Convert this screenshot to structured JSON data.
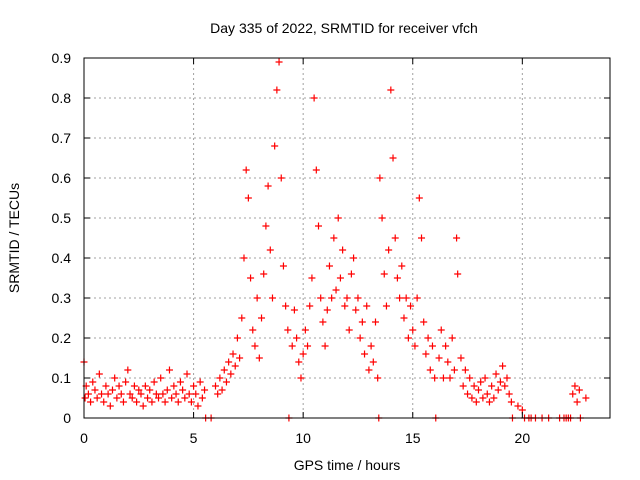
{
  "chart_data": {
    "type": "scatter",
    "title": "Day 335 of 2022, SRMTID for receiver vfch",
    "xlabel": "GPS time / hours",
    "ylabel": "SRMTID / TECUs",
    "xlim": [
      0,
      24
    ],
    "ylim": [
      0,
      0.9
    ],
    "x_ticks": [
      0,
      5,
      10,
      15,
      20
    ],
    "x_tick_labels": [
      "0",
      "5",
      "10",
      "15",
      "20"
    ],
    "y_ticks": [
      0,
      0.1,
      0.2,
      0.3,
      0.4,
      0.5,
      0.6,
      0.7,
      0.8,
      0.9
    ],
    "y_tick_labels": [
      "0",
      "0.1",
      "0.2",
      "0.3",
      "0.4",
      "0.5",
      "0.6",
      "0.7",
      "0.8",
      "0.9"
    ],
    "grid": true,
    "marker": "plus",
    "color": "#ff0000",
    "series": [
      {
        "name": "SRMTID",
        "points": [
          [
            0.0,
            0.14
          ],
          [
            0.05,
            0.05
          ],
          [
            0.1,
            0.08
          ],
          [
            0.2,
            0.06
          ],
          [
            0.3,
            0.04
          ],
          [
            0.4,
            0.09
          ],
          [
            0.5,
            0.07
          ],
          [
            0.6,
            0.05
          ],
          [
            0.7,
            0.11
          ],
          [
            0.8,
            0.06
          ],
          [
            0.9,
            0.04
          ],
          [
            1.0,
            0.08
          ],
          [
            1.1,
            0.06
          ],
          [
            1.2,
            0.03
          ],
          [
            1.3,
            0.07
          ],
          [
            1.4,
            0.1
          ],
          [
            1.5,
            0.05
          ],
          [
            1.6,
            0.08
          ],
          [
            1.7,
            0.06
          ],
          [
            1.8,
            0.04
          ],
          [
            1.9,
            0.09
          ],
          [
            2.0,
            0.12
          ],
          [
            2.1,
            0.06
          ],
          [
            2.2,
            0.05
          ],
          [
            2.3,
            0.08
          ],
          [
            2.4,
            0.04
          ],
          [
            2.5,
            0.07
          ],
          [
            2.6,
            0.06
          ],
          [
            2.7,
            0.03
          ],
          [
            2.8,
            0.08
          ],
          [
            2.9,
            0.05
          ],
          [
            3.0,
            0.07
          ],
          [
            3.1,
            0.04
          ],
          [
            3.2,
            0.09
          ],
          [
            3.3,
            0.06
          ],
          [
            3.4,
            0.05
          ],
          [
            3.5,
            0.1
          ],
          [
            3.6,
            0.06
          ],
          [
            3.7,
            0.04
          ],
          [
            3.8,
            0.07
          ],
          [
            3.9,
            0.12
          ],
          [
            4.0,
            0.05
          ],
          [
            4.1,
            0.08
          ],
          [
            4.2,
            0.06
          ],
          [
            4.3,
            0.04
          ],
          [
            4.4,
            0.09
          ],
          [
            4.5,
            0.07
          ],
          [
            4.6,
            0.05
          ],
          [
            4.7,
            0.11
          ],
          [
            4.8,
            0.06
          ],
          [
            4.9,
            0.04
          ],
          [
            5.0,
            0.08
          ],
          [
            5.1,
            0.06
          ],
          [
            5.2,
            0.03
          ],
          [
            5.3,
            0.09
          ],
          [
            5.4,
            0.05
          ],
          [
            5.5,
            0.07
          ],
          [
            5.55,
            0.0
          ],
          [
            5.8,
            0.0
          ],
          [
            6.0,
            0.08
          ],
          [
            6.1,
            0.06
          ],
          [
            6.2,
            0.1
          ],
          [
            6.3,
            0.07
          ],
          [
            6.4,
            0.12
          ],
          [
            6.5,
            0.09
          ],
          [
            6.6,
            0.14
          ],
          [
            6.7,
            0.11
          ],
          [
            6.8,
            0.16
          ],
          [
            6.9,
            0.13
          ],
          [
            7.0,
            0.2
          ],
          [
            7.1,
            0.15
          ],
          [
            7.2,
            0.25
          ],
          [
            7.3,
            0.4
          ],
          [
            7.4,
            0.62
          ],
          [
            7.5,
            0.55
          ],
          [
            7.6,
            0.35
          ],
          [
            7.7,
            0.22
          ],
          [
            7.8,
            0.18
          ],
          [
            7.9,
            0.3
          ],
          [
            8.0,
            0.15
          ],
          [
            8.1,
            0.25
          ],
          [
            8.2,
            0.36
          ],
          [
            8.3,
            0.48
          ],
          [
            8.4,
            0.58
          ],
          [
            8.5,
            0.42
          ],
          [
            8.6,
            0.3
          ],
          [
            8.7,
            0.68
          ],
          [
            8.8,
            0.82
          ],
          [
            8.9,
            0.89
          ],
          [
            9.0,
            0.6
          ],
          [
            9.1,
            0.38
          ],
          [
            9.2,
            0.28
          ],
          [
            9.3,
            0.22
          ],
          [
            9.35,
            0.0
          ],
          [
            9.5,
            0.18
          ],
          [
            9.6,
            0.27
          ],
          [
            9.7,
            0.2
          ],
          [
            9.8,
            0.14
          ],
          [
            9.9,
            0.1
          ],
          [
            10.0,
            0.16
          ],
          [
            10.1,
            0.22
          ],
          [
            10.2,
            0.18
          ],
          [
            10.3,
            0.28
          ],
          [
            10.4,
            0.35
          ],
          [
            10.5,
            0.8
          ],
          [
            10.6,
            0.62
          ],
          [
            10.7,
            0.48
          ],
          [
            10.8,
            0.3
          ],
          [
            10.9,
            0.24
          ],
          [
            11.0,
            0.18
          ],
          [
            11.1,
            0.27
          ],
          [
            11.2,
            0.38
          ],
          [
            11.3,
            0.3
          ],
          [
            11.4,
            0.45
          ],
          [
            11.5,
            0.32
          ],
          [
            11.6,
            0.5
          ],
          [
            11.7,
            0.35
          ],
          [
            11.8,
            0.42
          ],
          [
            11.9,
            0.28
          ],
          [
            12.0,
            0.3
          ],
          [
            12.1,
            0.22
          ],
          [
            12.2,
            0.36
          ],
          [
            12.3,
            0.4
          ],
          [
            12.4,
            0.27
          ],
          [
            12.5,
            0.3
          ],
          [
            12.6,
            0.2
          ],
          [
            12.7,
            0.24
          ],
          [
            12.8,
            0.16
          ],
          [
            12.9,
            0.28
          ],
          [
            13.0,
            0.12
          ],
          [
            13.1,
            0.18
          ],
          [
            13.2,
            0.14
          ],
          [
            13.3,
            0.24
          ],
          [
            13.4,
            0.1
          ],
          [
            13.45,
            0.0
          ],
          [
            13.5,
            0.6
          ],
          [
            13.6,
            0.5
          ],
          [
            13.7,
            0.36
          ],
          [
            13.8,
            0.28
          ],
          [
            13.9,
            0.42
          ],
          [
            14.0,
            0.82
          ],
          [
            14.1,
            0.65
          ],
          [
            14.2,
            0.45
          ],
          [
            14.3,
            0.35
          ],
          [
            14.4,
            0.3
          ],
          [
            14.5,
            0.38
          ],
          [
            14.6,
            0.25
          ],
          [
            14.7,
            0.3
          ],
          [
            14.8,
            0.2
          ],
          [
            14.9,
            0.28
          ],
          [
            15.0,
            0.22
          ],
          [
            15.1,
            0.18
          ],
          [
            15.2,
            0.3
          ],
          [
            15.3,
            0.55
          ],
          [
            15.4,
            0.45
          ],
          [
            15.5,
            0.24
          ],
          [
            15.6,
            0.16
          ],
          [
            15.7,
            0.2
          ],
          [
            15.8,
            0.12
          ],
          [
            15.9,
            0.18
          ],
          [
            16.0,
            0.1
          ],
          [
            16.05,
            0.0
          ],
          [
            16.2,
            0.15
          ],
          [
            16.3,
            0.22
          ],
          [
            16.4,
            0.1
          ],
          [
            16.5,
            0.18
          ],
          [
            16.6,
            0.14
          ],
          [
            16.7,
            0.1
          ],
          [
            16.8,
            0.2
          ],
          [
            16.9,
            0.12
          ],
          [
            17.0,
            0.45
          ],
          [
            17.05,
            0.36
          ],
          [
            17.2,
            0.15
          ],
          [
            17.3,
            0.08
          ],
          [
            17.4,
            0.12
          ],
          [
            17.5,
            0.06
          ],
          [
            17.6,
            0.1
          ],
          [
            17.7,
            0.05
          ],
          [
            17.8,
            0.08
          ],
          [
            17.9,
            0.04
          ],
          [
            18.0,
            0.07
          ],
          [
            18.1,
            0.09
          ],
          [
            18.2,
            0.05
          ],
          [
            18.3,
            0.1
          ],
          [
            18.4,
            0.06
          ],
          [
            18.5,
            0.04
          ],
          [
            18.6,
            0.08
          ],
          [
            18.7,
            0.05
          ],
          [
            18.8,
            0.11
          ],
          [
            18.9,
            0.07
          ],
          [
            19.0,
            0.09
          ],
          [
            19.1,
            0.13
          ],
          [
            19.2,
            0.08
          ],
          [
            19.3,
            0.1
          ],
          [
            19.4,
            0.06
          ],
          [
            19.5,
            0.04
          ],
          [
            19.55,
            0.0
          ],
          [
            19.8,
            0.03
          ],
          [
            20.0,
            0.02
          ],
          [
            20.1,
            0.0
          ],
          [
            20.3,
            0.0
          ],
          [
            20.4,
            0.0
          ],
          [
            20.6,
            0.0
          ],
          [
            20.9,
            0.0
          ],
          [
            21.2,
            0.0
          ],
          [
            21.7,
            0.0
          ],
          [
            21.9,
            0.0
          ],
          [
            22.0,
            0.0
          ],
          [
            22.1,
            0.0
          ],
          [
            22.2,
            0.0
          ],
          [
            22.3,
            0.06
          ],
          [
            22.4,
            0.08
          ],
          [
            22.5,
            0.04
          ],
          [
            22.6,
            0.07
          ],
          [
            22.65,
            0.0
          ],
          [
            22.9,
            0.05
          ]
        ]
      }
    ]
  }
}
